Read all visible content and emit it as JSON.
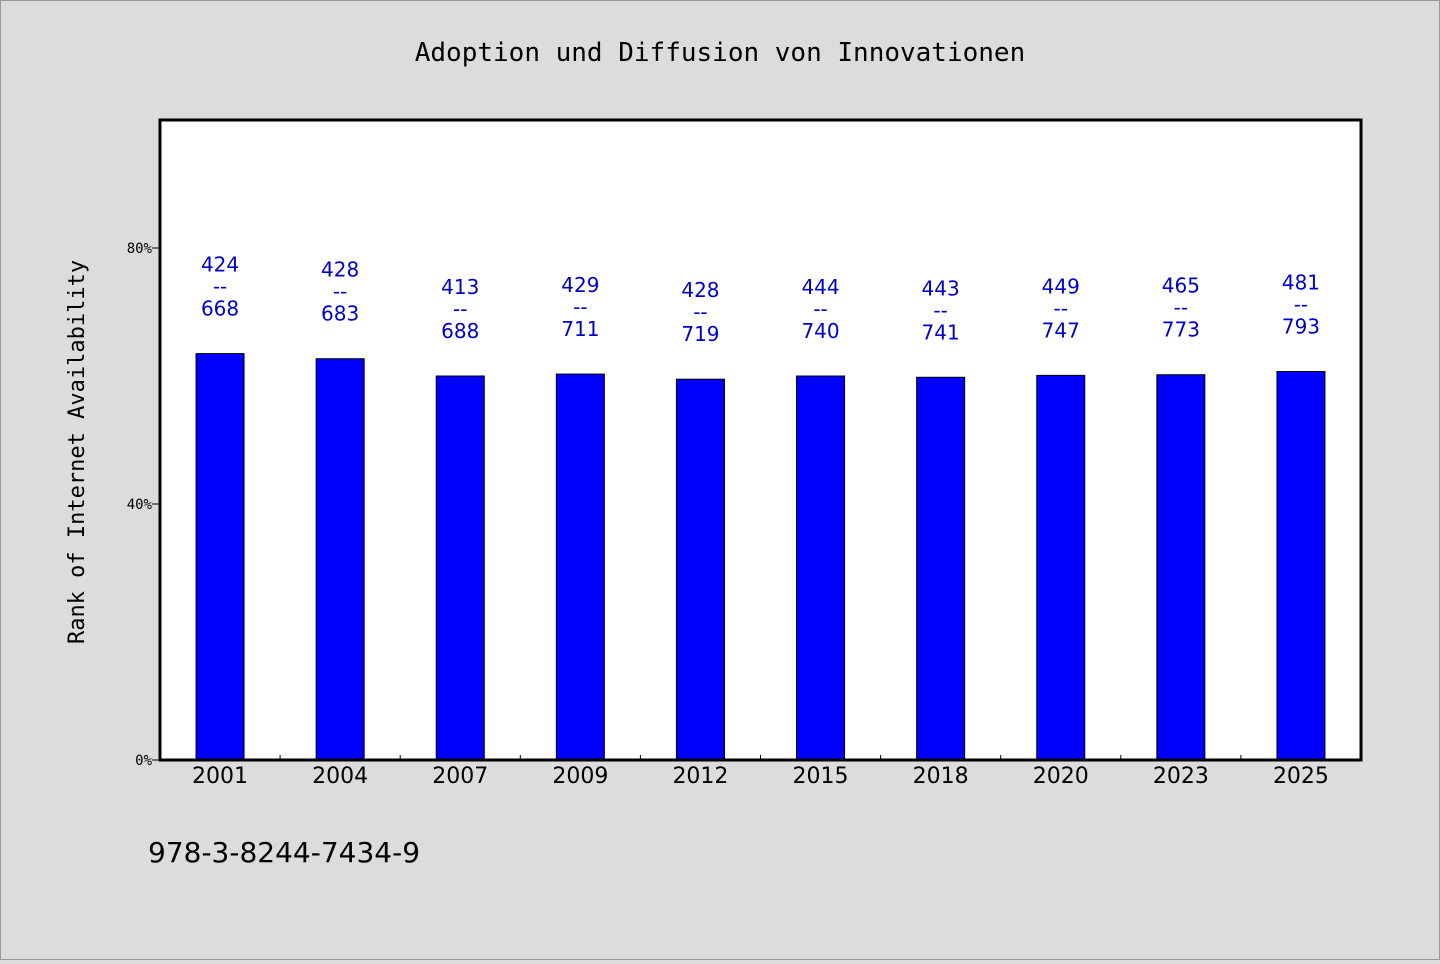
{
  "chart_data": {
    "type": "bar",
    "title": "Adoption und Diffusion von Innovationen",
    "ylabel": "Rank of Internet Availability",
    "xlabel": "",
    "categories": [
      "2001",
      "2004",
      "2007",
      "2009",
      "2012",
      "2015",
      "2018",
      "2020",
      "2023",
      "2025"
    ],
    "values": [
      0.635,
      0.627,
      0.6,
      0.603,
      0.595,
      0.6,
      0.598,
      0.601,
      0.602,
      0.607
    ],
    "value_unit": "fraction (0–1)",
    "annotations": [
      {
        "top": "424",
        "sep": "--",
        "bottom": "668"
      },
      {
        "top": "428",
        "sep": "--",
        "bottom": "683"
      },
      {
        "top": "413",
        "sep": "--",
        "bottom": "688"
      },
      {
        "top": "429",
        "sep": "--",
        "bottom": "711"
      },
      {
        "top": "428",
        "sep": "--",
        "bottom": "719"
      },
      {
        "top": "444",
        "sep": "--",
        "bottom": "740"
      },
      {
        "top": "443",
        "sep": "--",
        "bottom": "741"
      },
      {
        "top": "449",
        "sep": "--",
        "bottom": "747"
      },
      {
        "top": "465",
        "sep": "--",
        "bottom": "773"
      },
      {
        "top": "481",
        "sep": "--",
        "bottom": "793"
      }
    ],
    "ylim": [
      0,
      1
    ],
    "yticks": [
      {
        "value": 0,
        "label": "0%"
      },
      {
        "value": 0.4,
        "label": "40%"
      },
      {
        "value": 0.8,
        "label": "80%"
      }
    ],
    "grid": false,
    "legend": "none",
    "colors": {
      "bar": "#0000ff",
      "bar_edge": "#000000",
      "label": "#0000cc",
      "plot_background": "#ffffff",
      "figure_background": "#dcdcdc"
    }
  },
  "footer": {
    "isbn": "978-3-8244-7434-9"
  }
}
